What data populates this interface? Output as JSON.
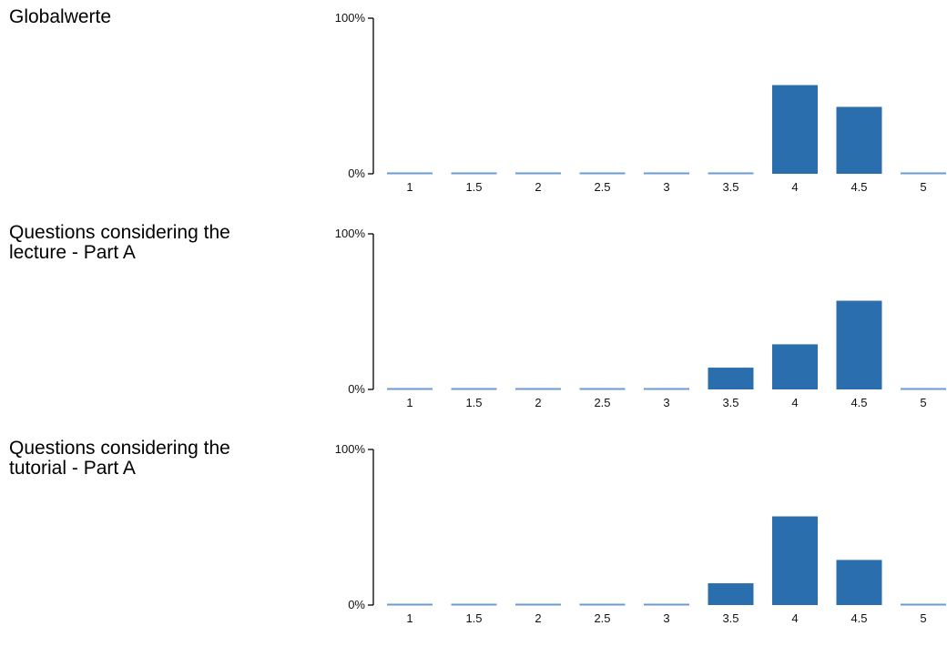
{
  "colors": {
    "bar": "#2b6ead",
    "zero_line": "#6b9bd1",
    "axis": "#000000"
  },
  "chart_data": [
    {
      "type": "bar",
      "title": "Globalwerte",
      "categories": [
        "1",
        "1.5",
        "2",
        "2.5",
        "3",
        "3.5",
        "4",
        "4.5",
        "5"
      ],
      "values": [
        0,
        0,
        0,
        0,
        0,
        0,
        57,
        43,
        0
      ],
      "ylim": [
        0,
        100
      ],
      "yticks": [
        "0%",
        "100%"
      ],
      "xlabel": "",
      "ylabel": ""
    },
    {
      "type": "bar",
      "title": "Questions considering the\nlecture - Part A",
      "categories": [
        "1",
        "1.5",
        "2",
        "2.5",
        "3",
        "3.5",
        "4",
        "4.5",
        "5"
      ],
      "values": [
        0,
        0,
        0,
        0,
        0,
        14,
        29,
        57,
        0
      ],
      "ylim": [
        0,
        100
      ],
      "yticks": [
        "0%",
        "100%"
      ],
      "xlabel": "",
      "ylabel": ""
    },
    {
      "type": "bar",
      "title": "Questions considering the\ntutorial - Part A",
      "categories": [
        "1",
        "1.5",
        "2",
        "2.5",
        "3",
        "3.5",
        "4",
        "4.5",
        "5"
      ],
      "values": [
        0,
        0,
        0,
        0,
        0,
        14,
        57,
        29,
        0
      ],
      "ylim": [
        0,
        100
      ],
      "yticks": [
        "0%",
        "100%"
      ],
      "xlabel": "",
      "ylabel": ""
    }
  ]
}
